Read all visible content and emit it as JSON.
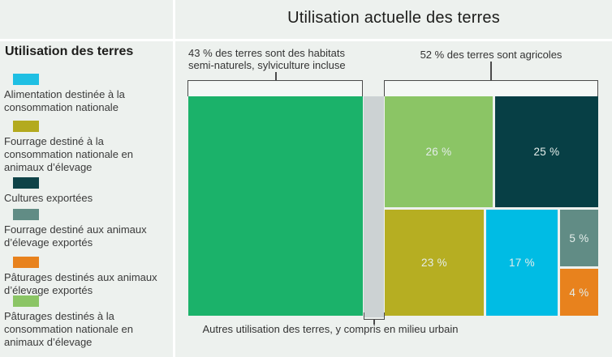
{
  "title": "Utilisation actuelle des terres",
  "palette": {
    "background": "#edf1ee",
    "divider": "#ffffff",
    "bracket_line": "#4b4b4b",
    "heading_text": "#1d1d1b",
    "body_text": "#3a3a3a",
    "label_on_block": "#e4edea"
  },
  "legend": {
    "title": "Utilisation des terres",
    "items": [
      {
        "label": "Alimentation destinée à la\nconsommation nationale",
        "color": "#1fbfe3"
      },
      {
        "label": "Fourrage destiné à la\nconsommation nationale en\nanimaux d’élevage",
        "color": "#b3aa1e"
      },
      {
        "label": "Cultures exportées",
        "color": "#0f4348"
      },
      {
        "label": "Fourrage destiné aux animaux\nd’élevage exportés",
        "color": "#618c85"
      },
      {
        "label": "Pâturages destinés aux animaux\nd’élevage exportés",
        "color": "#e8821d"
      },
      {
        "label": "Pâturages destinés à la\nconsommation nationale en\nanimaux d’élevage",
        "color": "#8bc565"
      }
    ]
  },
  "annotations": {
    "semi_natural": "43 % des terres sont des habitats\nsemi-naturels, sylviculture incluse",
    "agricultural": "52 % des terres sont agricoles",
    "other": "Autres utilisation des terres, y compris en milieu urbain"
  },
  "chart_data": {
    "type": "treemap",
    "title": "Utilisation actuelle des terres",
    "unit": "%",
    "groups": [
      {
        "label": "43 % des terres sont des habitats semi-naturels, sylviculture incluse",
        "pct": 43
      },
      {
        "label": "52 % des terres sont agricoles",
        "pct": 52
      },
      {
        "label": "Autres utilisation des terres, y compris en milieu urbain"
      }
    ],
    "cells": [
      {
        "name": "Habitats semi-naturels, sylviculture incluse",
        "pct": 43,
        "display": "",
        "color": "#1bb26a"
      },
      {
        "name": "Pâturages destinés à la consommation nationale en animaux d’élevage",
        "pct": 26,
        "display": "26 %",
        "color": "#8bc565"
      },
      {
        "name": "Cultures exportées",
        "pct": 25,
        "display": "25 %",
        "color": "#073f45"
      },
      {
        "name": "Fourrage destiné à la consommation nationale en animaux d’élevage",
        "pct": 23,
        "display": "23 %",
        "color": "#b6ae22"
      },
      {
        "name": "Alimentation destinée à la consommation nationale",
        "pct": 17,
        "display": "17 %",
        "color": "#00bce4"
      },
      {
        "name": "Fourrage destiné aux animaux d’élevage exportés",
        "pct": 5,
        "display": "5 %",
        "color": "#618c85"
      },
      {
        "name": "Pâturages destinés aux animaux d’élevage exportés",
        "pct": 4,
        "display": "4 %",
        "color": "#e8821d"
      },
      {
        "name": "Autres utilisation des terres, y compris en milieu urbain",
        "display": "",
        "color": "#ccd2d3"
      }
    ]
  }
}
